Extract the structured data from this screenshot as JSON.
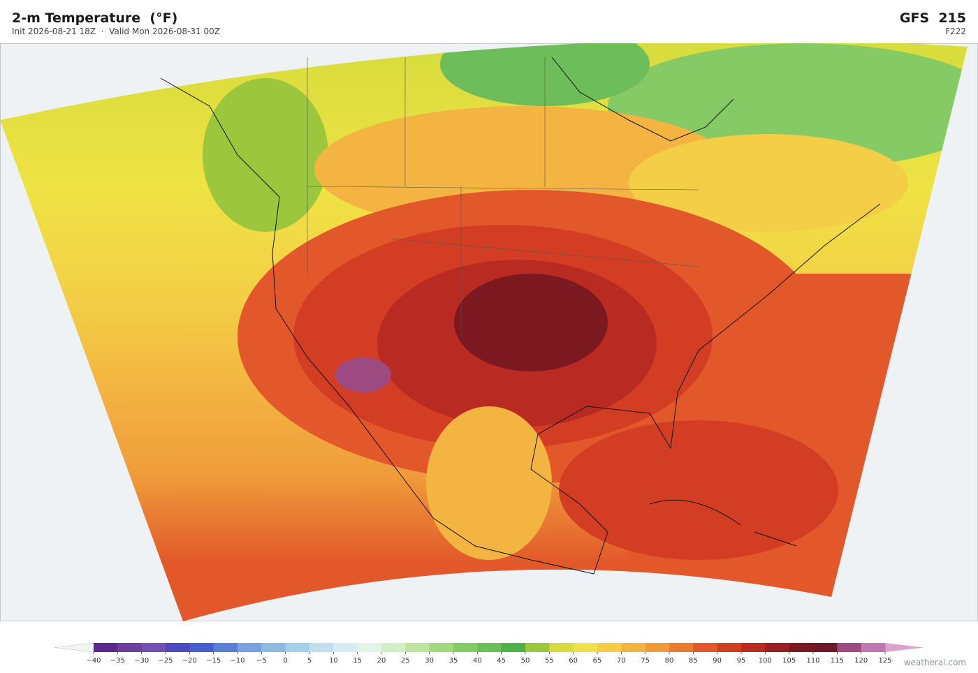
{
  "header": {
    "title": "2-m Temperature  (°F)",
    "subtitle": "Init 2026-08-21 18Z  ·  Valid Mon 2026-08-31 00Z",
    "model": "GFS  215",
    "forecast_hour": "F222"
  },
  "colorbar": {
    "ticks": [
      {
        "value": -40,
        "label": "−40"
      },
      {
        "value": -35,
        "label": "−35"
      },
      {
        "value": -30,
        "label": "−30"
      },
      {
        "value": -25,
        "label": "−25"
      },
      {
        "value": -20,
        "label": "−20"
      },
      {
        "value": -15,
        "label": "−15"
      },
      {
        "value": -10,
        "label": "−10"
      },
      {
        "value": -5,
        "label": "−5"
      },
      0,
      5,
      10,
      15,
      20,
      25,
      30,
      35,
      40,
      45,
      50,
      55,
      60,
      65,
      70,
      75,
      80,
      85,
      90,
      95,
      100,
      105,
      110,
      115,
      120,
      125
    ],
    "colors": [
      "#5b2a8e",
      "#6e3fa0",
      "#7451b0",
      "#4b4bbf",
      "#4a5fce",
      "#5c7fd6",
      "#79a1dc",
      "#8fbbe0",
      "#a6cfe8",
      "#c0e0ef",
      "#d6ecf2",
      "#e2f3ea",
      "#d3edc8",
      "#bfe3a2",
      "#a3d780",
      "#86ca66",
      "#6dbd5a",
      "#52b04a",
      "#9cc63c",
      "#d7dc3c",
      "#efe244",
      "#f3ce46",
      "#f3b441",
      "#ef9b3a",
      "#ea7c2f",
      "#e2582a",
      "#d33d24",
      "#b92b22",
      "#9a1f22",
      "#7c1820",
      "#6b1a2a",
      "#9d4a80",
      "#bf79b2"
    ],
    "under_color": "#f4f4f4",
    "over_color": "#d9a3ce"
  },
  "watermark": "weatherai.com"
}
